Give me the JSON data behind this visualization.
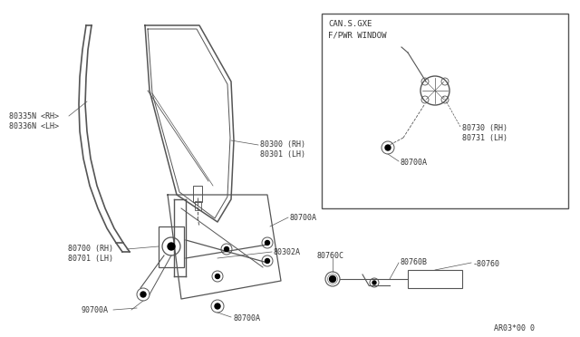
{
  "bg_color": "#ffffff",
  "line_color": "#555555",
  "text_color": "#333333",
  "fig_width": 6.4,
  "fig_height": 3.72,
  "watermark": "AR03*00 0",
  "inset_label_line1": "CAN.S.GXE",
  "inset_label_line2": "F/PWR WINDOW"
}
